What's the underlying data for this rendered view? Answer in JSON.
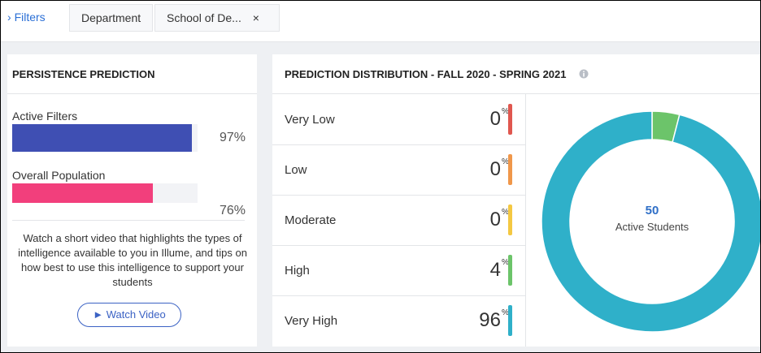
{
  "filters": {
    "label": "Filters",
    "chips": [
      "Department",
      "School of De..."
    ]
  },
  "persistence": {
    "title": "PERSISTENCE PREDICTION",
    "xlim": [
      0,
      100
    ],
    "bars": [
      {
        "name": "Active Filters",
        "value": 97,
        "value_label": "97%",
        "color": "#3f4fb3"
      },
      {
        "name": "Overall Population",
        "value": 76,
        "value_label": "76%",
        "color": "#f23f7c"
      }
    ],
    "note": "Watch a short video that highlights the types of intelligence available to you in Illume, and tips on how best to use this intelligence to support your students",
    "button": "Watch Video"
  },
  "distribution": {
    "title": "PREDICTION DISTRIBUTION - FALL 2020 - SPRING 2021",
    "unit": "%",
    "rows": [
      {
        "name": "Very Low",
        "value": 0,
        "color": "#e0574f"
      },
      {
        "name": "Low",
        "value": 0,
        "color": "#f0974a"
      },
      {
        "name": "Moderate",
        "value": 0,
        "color": "#f4c842"
      },
      {
        "name": "High",
        "value": 4,
        "color": "#6cc46a"
      },
      {
        "name": "Very High",
        "value": 96,
        "color": "#2fb0c9"
      }
    ],
    "center_value": 50,
    "center_label": "Active Students"
  }
}
